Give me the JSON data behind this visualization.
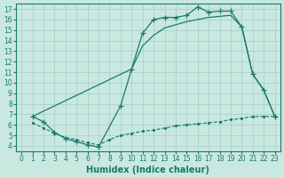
{
  "line1_x": [
    1,
    2,
    3,
    4,
    5,
    6,
    7,
    9,
    10,
    11,
    12,
    13,
    14,
    15,
    16,
    17,
    18,
    19,
    20,
    21,
    22,
    23
  ],
  "line1_y": [
    6.8,
    6.3,
    5.3,
    4.7,
    4.4,
    4.1,
    3.9,
    7.8,
    11.3,
    14.7,
    16.0,
    16.2,
    16.2,
    16.4,
    17.2,
    16.7,
    16.8,
    16.8,
    15.3,
    10.8,
    9.3,
    6.8
  ],
  "line2_x": [
    1,
    10,
    11,
    12,
    13,
    14,
    15,
    16,
    17,
    18,
    19,
    20,
    21,
    22,
    23
  ],
  "line2_y": [
    6.8,
    11.3,
    13.5,
    14.5,
    15.2,
    15.5,
    15.8,
    16.0,
    16.2,
    16.3,
    16.4,
    15.3,
    10.8,
    9.3,
    6.8
  ],
  "line3_x": [
    1,
    2,
    3,
    4,
    5,
    6,
    7,
    8,
    9,
    10,
    11,
    12,
    13,
    14,
    15,
    16,
    17,
    18,
    19,
    20,
    21,
    22,
    23
  ],
  "line3_y": [
    6.2,
    5.7,
    5.2,
    4.8,
    4.6,
    4.3,
    4.1,
    4.6,
    5.0,
    5.2,
    5.4,
    5.5,
    5.7,
    5.9,
    6.0,
    6.1,
    6.2,
    6.3,
    6.5,
    6.6,
    6.8,
    6.8,
    6.8
  ],
  "color": "#1a7a6e",
  "bg_color": "#c8e8e0",
  "grid_color": "#a8ccc5",
  "xlabel": "Humidex (Indice chaleur)",
  "xlim": [
    -0.5,
    23.5
  ],
  "ylim": [
    3.5,
    17.5
  ],
  "xticks": [
    0,
    1,
    2,
    3,
    4,
    5,
    6,
    7,
    8,
    9,
    10,
    11,
    12,
    13,
    14,
    15,
    16,
    17,
    18,
    19,
    20,
    21,
    22,
    23
  ],
  "yticks": [
    4,
    5,
    6,
    7,
    8,
    9,
    10,
    11,
    12,
    13,
    14,
    15,
    16,
    17
  ]
}
